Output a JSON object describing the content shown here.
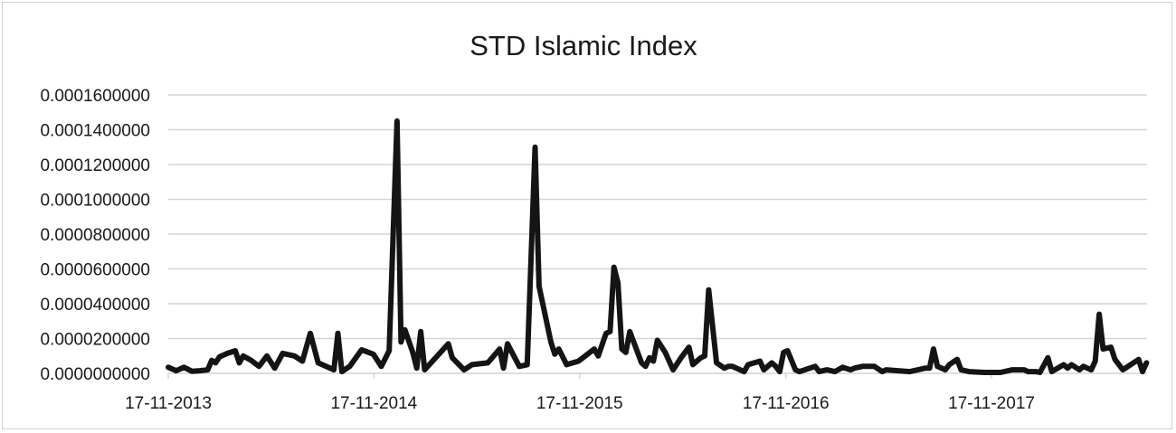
{
  "chart_data": {
    "type": "line",
    "title": "STD Islamic Index",
    "xlabel": "",
    "ylabel": "",
    "ylim": [
      0,
      0.00016
    ],
    "y_ticks": [
      "0.0000000000",
      "0.0000200000",
      "0.0000400000",
      "0.0000600000",
      "0.0000800000",
      "0.0001000000",
      "0.0001200000",
      "0.0001400000",
      "0.0001600000"
    ],
    "x_ticks": [
      "17-11-2013",
      "17-11-2014",
      "17-11-2015",
      "17-11-2016",
      "17-11-2017"
    ],
    "x_range": [
      "2013-11-17",
      "2018-08-20"
    ],
    "grid": "horizontal",
    "legend": "none",
    "color": "#141414",
    "series": [
      {
        "values": [
          [
            "2013-11-17",
            3.5e-06
          ],
          [
            "2013-12-01",
            1.5e-06
          ],
          [
            "2013-12-15",
            3.5e-06
          ],
          [
            "2013-12-29",
            1.2e-06
          ],
          [
            "2014-01-12",
            1.5e-06
          ],
          [
            "2014-01-26",
            2e-06
          ],
          [
            "2014-02-02",
            7.5e-06
          ],
          [
            "2014-02-09",
            6e-06
          ],
          [
            "2014-02-16",
            9.5e-06
          ],
          [
            "2014-03-02",
            1.15e-05
          ],
          [
            "2014-03-16",
            1.3e-05
          ],
          [
            "2014-03-23",
            6e-06
          ],
          [
            "2014-03-30",
            1e-05
          ],
          [
            "2014-04-13",
            7.5e-06
          ],
          [
            "2014-04-27",
            4e-06
          ],
          [
            "2014-05-11",
            1e-05
          ],
          [
            "2014-05-25",
            3e-06
          ],
          [
            "2014-06-08",
            1.15e-05
          ],
          [
            "2014-06-29",
            1e-05
          ],
          [
            "2014-07-13",
            7e-06
          ],
          [
            "2014-07-27",
            2.3e-05
          ],
          [
            "2014-08-10",
            6e-06
          ],
          [
            "2014-08-24",
            4e-06
          ],
          [
            "2014-09-07",
            2e-06
          ],
          [
            "2014-09-14",
            2.3e-05
          ],
          [
            "2014-09-21",
            1e-06
          ],
          [
            "2014-10-05",
            4e-06
          ],
          [
            "2014-10-26",
            1.35e-05
          ],
          [
            "2014-11-16",
            1.1e-05
          ],
          [
            "2014-11-30",
            4e-06
          ],
          [
            "2014-12-14",
            1.3e-05
          ],
          [
            "2014-12-28",
            0.000145
          ],
          [
            "2015-01-04",
            1.8e-05
          ],
          [
            "2015-01-11",
            2.5e-05
          ],
          [
            "2015-01-25",
            1.2e-05
          ],
          [
            "2015-02-01",
            3e-06
          ],
          [
            "2015-02-08",
            2.4e-05
          ],
          [
            "2015-02-15",
            2e-06
          ],
          [
            "2015-03-29",
            1.7e-05
          ],
          [
            "2015-04-05",
            9e-06
          ],
          [
            "2015-04-26",
            2e-06
          ],
          [
            "2015-05-10",
            5e-06
          ],
          [
            "2015-06-07",
            6e-06
          ],
          [
            "2015-06-28",
            1.4e-05
          ],
          [
            "2015-07-05",
            3e-06
          ],
          [
            "2015-07-12",
            1.7e-05
          ],
          [
            "2015-08-02",
            4e-06
          ],
          [
            "2015-08-16",
            5e-06
          ],
          [
            "2015-08-30",
            0.00013
          ],
          [
            "2015-09-06",
            5e-05
          ],
          [
            "2015-09-27",
            1.8e-05
          ],
          [
            "2015-10-04",
            1.1e-05
          ],
          [
            "2015-10-11",
            1.4e-05
          ],
          [
            "2015-10-25",
            5e-06
          ],
          [
            "2015-11-15",
            7e-06
          ],
          [
            "2015-12-13",
            1.4e-05
          ],
          [
            "2015-12-20",
            1e-05
          ],
          [
            "2016-01-03",
            2.3e-05
          ],
          [
            "2016-01-10",
            2.4e-05
          ],
          [
            "2016-01-17",
            6.1e-05
          ],
          [
            "2016-01-24",
            5.2e-05
          ],
          [
            "2016-01-31",
            1.4e-05
          ],
          [
            "2016-02-07",
            1.2e-05
          ],
          [
            "2016-02-14",
            2.4e-05
          ],
          [
            "2016-03-06",
            6e-06
          ],
          [
            "2016-03-13",
            4e-06
          ],
          [
            "2016-03-20",
            9e-06
          ],
          [
            "2016-03-27",
            7e-06
          ],
          [
            "2016-04-03",
            1.9e-05
          ],
          [
            "2016-04-17",
            1.2e-05
          ],
          [
            "2016-05-01",
            2e-06
          ],
          [
            "2016-05-15",
            9e-06
          ],
          [
            "2016-05-29",
            1.5e-05
          ],
          [
            "2016-06-05",
            5e-06
          ],
          [
            "2016-06-19",
            9e-06
          ],
          [
            "2016-06-26",
            1e-05
          ],
          [
            "2016-07-03",
            4.8e-05
          ],
          [
            "2016-07-17",
            6e-06
          ],
          [
            "2016-07-31",
            3e-06
          ],
          [
            "2016-08-07",
            4e-06
          ],
          [
            "2016-08-14",
            4e-06
          ],
          [
            "2016-09-04",
            1e-06
          ],
          [
            "2016-09-11",
            5e-06
          ],
          [
            "2016-10-02",
            7e-06
          ],
          [
            "2016-10-09",
            2e-06
          ],
          [
            "2016-10-23",
            6e-06
          ],
          [
            "2016-10-30",
            4e-06
          ],
          [
            "2016-11-06",
            1e-06
          ],
          [
            "2016-11-13",
            1.2e-05
          ],
          [
            "2016-11-20",
            1.3e-05
          ],
          [
            "2016-12-04",
            2e-06
          ],
          [
            "2016-12-11",
            1e-06
          ],
          [
            "2017-01-08",
            4e-06
          ],
          [
            "2017-01-15",
            1e-06
          ],
          [
            "2017-01-29",
            2e-06
          ],
          [
            "2017-02-12",
            1e-06
          ],
          [
            "2017-02-26",
            3.5e-06
          ],
          [
            "2017-03-12",
            2e-06
          ],
          [
            "2017-03-19",
            3e-06
          ],
          [
            "2017-04-02",
            4e-06
          ],
          [
            "2017-04-09",
            4e-06
          ],
          [
            "2017-04-16",
            4e-06
          ],
          [
            "2017-04-23",
            4e-06
          ],
          [
            "2017-05-07",
            1e-06
          ],
          [
            "2017-05-14",
            2e-06
          ],
          [
            "2017-06-25",
            1e-06
          ],
          [
            "2017-07-23",
            3e-06
          ],
          [
            "2017-07-30",
            3e-06
          ],
          [
            "2017-08-06",
            1.4e-05
          ],
          [
            "2017-08-13",
            4e-06
          ],
          [
            "2017-08-27",
            2e-06
          ],
          [
            "2017-09-03",
            5e-06
          ],
          [
            "2017-09-17",
            8e-06
          ],
          [
            "2017-09-24",
            2e-06
          ],
          [
            "2017-10-08",
            1e-06
          ],
          [
            "2017-11-05",
            5e-07
          ],
          [
            "2017-11-19",
            5e-07
          ],
          [
            "2017-12-03",
            5e-07
          ],
          [
            "2017-12-24",
            2e-06
          ],
          [
            "2018-01-14",
            2e-06
          ],
          [
            "2018-01-21",
            1e-06
          ],
          [
            "2018-01-28",
            1e-06
          ],
          [
            "2018-02-04",
            1e-06
          ],
          [
            "2018-02-11",
            5e-07
          ],
          [
            "2018-02-25",
            9e-06
          ],
          [
            "2018-03-04",
            1e-06
          ],
          [
            "2018-03-25",
            5e-06
          ],
          [
            "2018-04-01",
            3e-06
          ],
          [
            "2018-04-08",
            5e-06
          ],
          [
            "2018-04-22",
            2e-06
          ],
          [
            "2018-04-29",
            4e-06
          ],
          [
            "2018-05-06",
            3e-06
          ],
          [
            "2018-05-13",
            2e-06
          ],
          [
            "2018-05-20",
            7e-06
          ],
          [
            "2018-05-27",
            3.4e-05
          ],
          [
            "2018-06-03",
            1.4e-05
          ],
          [
            "2018-06-17",
            1.5e-05
          ],
          [
            "2018-06-24",
            8e-06
          ],
          [
            "2018-07-08",
            2e-06
          ],
          [
            "2018-07-22",
            5e-06
          ],
          [
            "2018-08-05",
            8e-06
          ],
          [
            "2018-08-12",
            1e-06
          ],
          [
            "2018-08-19",
            6e-06
          ]
        ]
      }
    ]
  }
}
